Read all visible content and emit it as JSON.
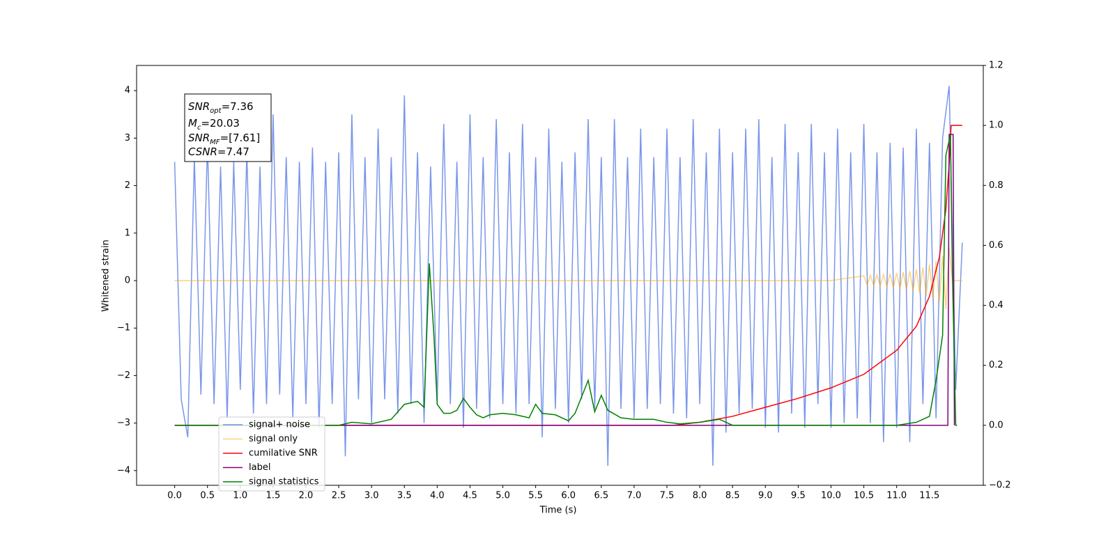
{
  "chart_data": {
    "type": "line",
    "xlabel": "Time (s)",
    "ylabel": "Whitened strain",
    "xlim": [
      -0.58,
      12.32
    ],
    "ylim": [
      -4.31,
      4.53
    ],
    "y2lim": [
      -0.2,
      1.2
    ],
    "xticks": [
      {
        "value": 0,
        "label": "0.0"
      },
      0.5,
      {
        "value": 1,
        "label": "1.0"
      },
      1.5,
      {
        "value": 2,
        "label": "2.0"
      },
      2.5,
      {
        "value": 3,
        "label": "3.0"
      },
      3.5,
      {
        "value": 4,
        "label": "4.0"
      },
      4.5,
      {
        "value": 5,
        "label": "5.0"
      },
      5.5,
      {
        "value": 6,
        "label": "6.0"
      },
      6.5,
      {
        "value": 7,
        "label": "7.0"
      },
      7.5,
      {
        "value": 8,
        "label": "8.0"
      },
      8.5,
      {
        "value": 9,
        "label": "9.0"
      },
      9.5,
      {
        "value": 10,
        "label": "10.0"
      },
      10.5,
      {
        "value": 11,
        "label": "11.0"
      },
      11.5
    ],
    "yticks": [
      {
        "value": -4,
        "label": "−4"
      },
      {
        "value": -3,
        "label": "−3"
      },
      {
        "value": -2,
        "label": "−2"
      },
      {
        "value": -1,
        "label": "−1"
      },
      0,
      1,
      2,
      3,
      4
    ],
    "y2ticks": [
      {
        "value": -0.2,
        "label": "−0.2"
      },
      {
        "value": 0,
        "label": "0.0"
      },
      0.2,
      0.4,
      0.6,
      0.8,
      {
        "value": 1,
        "label": "1.0"
      },
      1.2
    ],
    "legend": "lower left",
    "annotation": [
      {
        "text": "SNR",
        "sub": "opt",
        "rest": "=7.36"
      },
      {
        "text": "M",
        "sub": "c",
        "rest": "=20.03"
      },
      {
        "text": "SNR",
        "sub": "MF",
        "rest": "=[7.61]"
      },
      {
        "text": "CSNR",
        "rest": "=7.47"
      }
    ],
    "series": [
      {
        "name": "signal+ noise",
        "color": "#4169e1",
        "opacity": 0.7,
        "x": [
          0,
          0.1,
          0.2,
          0.3,
          0.4,
          0.5,
          0.6,
          0.7,
          0.8,
          0.9,
          1,
          1.1,
          1.2,
          1.3,
          1.4,
          1.5,
          1.6,
          1.7,
          1.8,
          1.9,
          2,
          2.1,
          2.2,
          2.3,
          2.4,
          2.5,
          2.6,
          2.7,
          2.8,
          2.9,
          3,
          3.1,
          3.2,
          3.3,
          3.4,
          3.5,
          3.6,
          3.7,
          3.8,
          3.9,
          4,
          4.1,
          4.2,
          4.3,
          4.4,
          4.5,
          4.6,
          4.7,
          4.8,
          4.9,
          5,
          5.1,
          5.2,
          5.3,
          5.4,
          5.5,
          5.6,
          5.7,
          5.8,
          5.9,
          6,
          6.1,
          6.2,
          6.3,
          6.4,
          6.5,
          6.6,
          6.7,
          6.8,
          6.9,
          7,
          7.1,
          7.2,
          7.3,
          7.4,
          7.5,
          7.6,
          7.7,
          7.8,
          7.9,
          8,
          8.1,
          8.2,
          8.3,
          8.4,
          8.5,
          8.6,
          8.7,
          8.8,
          8.9,
          9,
          9.1,
          9.2,
          9.3,
          9.4,
          9.5,
          9.6,
          9.7,
          9.8,
          9.9,
          10,
          10.1,
          10.2,
          10.3,
          10.4,
          10.5,
          10.6,
          10.7,
          10.8,
          10.9,
          11,
          11.1,
          11.2,
          11.3,
          11.4,
          11.5,
          11.6,
          11.7,
          11.8,
          11.9,
          12
        ],
        "values": [
          2.5,
          -2.5,
          -3.3,
          2.6,
          -2.4,
          2.9,
          -2.6,
          2.4,
          -2.9,
          2.5,
          -2.3,
          2.7,
          -2.8,
          2.4,
          -2.6,
          3.5,
          -2.4,
          2.6,
          -2.9,
          2.5,
          -2.6,
          2.8,
          -3.1,
          2.5,
          -2.6,
          2.7,
          -3.7,
          3.5,
          -2.5,
          2.6,
          -3.0,
          3.2,
          -2.5,
          2.6,
          -2.8,
          3.9,
          -2.6,
          2.7,
          -3.0,
          2.4,
          -2.6,
          3.3,
          -2.6,
          2.5,
          -3.1,
          3.5,
          -2.7,
          2.6,
          -2.9,
          3.4,
          -2.6,
          2.7,
          -2.8,
          3.3,
          -2.6,
          2.6,
          -3.3,
          3.2,
          -2.7,
          2.5,
          -3.0,
          2.7,
          -2.5,
          3.4,
          -2.7,
          2.6,
          -3.9,
          3.4,
          -2.7,
          2.6,
          -2.9,
          3.2,
          -2.7,
          2.6,
          -2.6,
          3.2,
          -2.8,
          2.6,
          -2.9,
          3.4,
          -2.6,
          2.7,
          -3.9,
          3.2,
          -3.2,
          2.7,
          -2.8,
          3.2,
          -2.7,
          3.4,
          -3.1,
          2.6,
          -3.2,
          3.3,
          -2.8,
          2.7,
          -3.1,
          3.3,
          -2.6,
          2.7,
          -3.1,
          3.2,
          -3.0,
          2.7,
          -2.9,
          3.3,
          -3.0,
          2.7,
          -3.4,
          2.9,
          -3.1,
          2.8,
          -3.4,
          3.2,
          -2.6,
          2.9,
          -2.9,
          3.0,
          4.1,
          -2.3,
          0.8
        ]
      },
      {
        "name": "signal only",
        "color": "#ffa500",
        "opacity": 0.5,
        "x": [
          0,
          7,
          9,
          10,
          10.5,
          10.55,
          10.6,
          10.65,
          10.7,
          10.75,
          10.8,
          10.85,
          10.9,
          10.95,
          11,
          11.05,
          11.1,
          11.15,
          11.2,
          11.25,
          11.3,
          11.35,
          11.4,
          11.45,
          11.5,
          11.55,
          11.6,
          11.65,
          11.7,
          11.75,
          11.8,
          11.85,
          12
        ],
        "values": [
          0,
          0,
          0,
          0,
          0.1,
          -0.1,
          0.11,
          -0.11,
          0.12,
          -0.12,
          0.13,
          -0.13,
          0.14,
          -0.15,
          0.16,
          -0.17,
          0.18,
          -0.19,
          0.2,
          -0.22,
          0.24,
          -0.26,
          0.28,
          -0.31,
          0.34,
          -0.37,
          0.41,
          -0.46,
          0.52,
          -0.6,
          0.7,
          0,
          0
        ]
      },
      {
        "name": "cumilative SNR",
        "color": "#ff0000",
        "axis": "y2",
        "x": [
          0,
          7.6,
          8,
          8.5,
          9,
          9.5,
          10,
          10.5,
          11,
          11.3,
          11.5,
          11.65,
          11.75,
          11.8,
          11.83,
          12
        ],
        "values": [
          0,
          0,
          0.01,
          0.03,
          0.06,
          0.09,
          0.125,
          0.17,
          0.25,
          0.33,
          0.43,
          0.56,
          0.72,
          0.87,
          1,
          1
        ]
      },
      {
        "name": "label",
        "color": "#800080",
        "axis": "y2",
        "x": [
          0,
          11.78,
          11.8,
          11.86,
          11.88
        ],
        "values": [
          0,
          0,
          0.97,
          0.97,
          0
        ]
      },
      {
        "name": "signal statistics",
        "color": "#008000",
        "axis": "y2",
        "x": [
          0,
          2.5,
          2.7,
          3,
          3.3,
          3.5,
          3.7,
          3.8,
          3.88,
          3.95,
          4,
          4.1,
          4.2,
          4.3,
          4.4,
          4.5,
          4.6,
          4.7,
          4.8,
          5,
          5.2,
          5.4,
          5.5,
          5.6,
          5.8,
          6,
          6.1,
          6.3,
          6.4,
          6.5,
          6.6,
          6.8,
          7,
          7.3,
          7.5,
          7.7,
          8,
          8.3,
          8.5,
          11,
          11.3,
          11.5,
          11.6,
          11.7,
          11.75,
          11.82,
          11.85,
          11.9,
          11.92
        ],
        "values": [
          0,
          0,
          0.01,
          0.005,
          0.02,
          0.07,
          0.08,
          0.06,
          0.54,
          0.3,
          0.07,
          0.04,
          0.04,
          0.05,
          0.09,
          0.06,
          0.035,
          0.025,
          0.035,
          0.04,
          0.035,
          0.025,
          0.07,
          0.04,
          0.035,
          0.015,
          0.04,
          0.15,
          0.045,
          0.1,
          0.05,
          0.025,
          0.02,
          0.02,
          0.01,
          0.005,
          0.01,
          0.02,
          0,
          0,
          0.01,
          0.03,
          0.15,
          0.3,
          0.9,
          0.97,
          0.5,
          0,
          0
        ]
      }
    ]
  }
}
